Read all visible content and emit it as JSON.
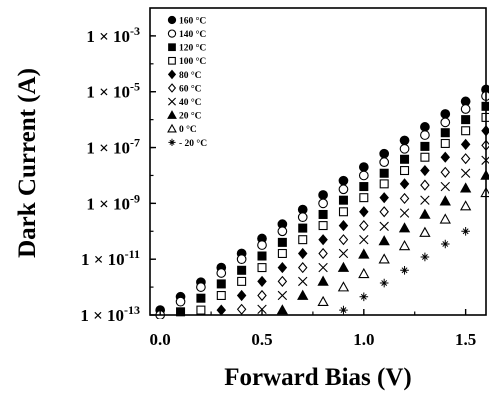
{
  "chart_data": {
    "type": "scatter",
    "xlabel": "Forward Bias (V)",
    "ylabel": "Dark Current (A)",
    "x_scale": "linear",
    "y_scale": "log",
    "xlim": [
      -0.05,
      1.6
    ],
    "ylim": [
      1e-13,
      0.01
    ],
    "x_ticks": [
      0.0,
      0.5,
      1.0,
      1.5
    ],
    "x_tick_labels": [
      "0.0",
      "0.5",
      "1.0",
      "1.5"
    ],
    "y_ticks": [
      1e-13,
      1e-11,
      1e-09,
      1e-07,
      1e-05,
      0.001
    ],
    "y_tick_labels": [
      {
        "base": "1 × 10",
        "exp": "-13"
      },
      {
        "base": "1 × 10",
        "exp": "-11"
      },
      {
        "base": "1 × 10",
        "exp": "-9"
      },
      {
        "base": "1 × 10",
        "exp": "-7"
      },
      {
        "base": "1 × 10",
        "exp": "-5"
      },
      {
        "base": "1 × 10",
        "exp": "-3"
      }
    ],
    "grid": false,
    "legend_position": "top-left",
    "series": [
      {
        "name": "160 °C",
        "marker": "filled-circle",
        "x": [
          0.0,
          0.1,
          0.2,
          0.3,
          0.4,
          0.5,
          0.6,
          0.7,
          0.8,
          0.9,
          1.0,
          1.1,
          1.2,
          1.3,
          1.4,
          1.5,
          1.6
        ],
        "y": [
          1.5e-13,
          4.5e-13,
          1.5e-12,
          5e-12,
          1.6e-11,
          5.5e-11,
          1.8e-10,
          6e-10,
          2e-09,
          6.5e-09,
          2e-08,
          6e-08,
          1.8e-07,
          5.5e-07,
          1.6e-06,
          4.5e-06,
          1.2e-05
        ]
      },
      {
        "name": "140 °C",
        "marker": "open-circle",
        "x": [
          0.0,
          0.1,
          0.2,
          0.3,
          0.4,
          0.5,
          0.6,
          0.7,
          0.8,
          0.9,
          1.0,
          1.1,
          1.2,
          1.3,
          1.4,
          1.5,
          1.6
        ],
        "y": [
          1e-13,
          3e-13,
          1e-12,
          3.2e-12,
          1e-11,
          3.2e-11,
          1e-10,
          3.2e-10,
          1e-09,
          3.2e-09,
          1e-08,
          3e-08,
          9e-08,
          2.8e-07,
          8e-07,
          2.4e-06,
          7e-06
        ]
      },
      {
        "name": "120 °C",
        "marker": "filled-square",
        "x": [
          0.1,
          0.2,
          0.3,
          0.4,
          0.5,
          0.6,
          0.7,
          0.8,
          0.9,
          1.0,
          1.1,
          1.2,
          1.3,
          1.4,
          1.5,
          1.6
        ],
        "y": [
          1.3e-13,
          4e-13,
          1.3e-12,
          4e-12,
          1.3e-11,
          4e-11,
          1.3e-10,
          4e-10,
          1.3e-09,
          4e-09,
          1.2e-08,
          3.8e-08,
          1.1e-07,
          3.4e-07,
          1e-06,
          3e-06
        ]
      },
      {
        "name": "100 °C",
        "marker": "open-square",
        "x": [
          0.2,
          0.3,
          0.4,
          0.5,
          0.6,
          0.7,
          0.8,
          0.9,
          1.0,
          1.1,
          1.2,
          1.3,
          1.4,
          1.5,
          1.6
        ],
        "y": [
          1.5e-13,
          5e-13,
          1.6e-12,
          5e-12,
          1.6e-11,
          5e-11,
          1.6e-10,
          5e-10,
          1.6e-09,
          5e-09,
          1.5e-08,
          4.5e-08,
          1.4e-07,
          4e-07,
          1.2e-06
        ]
      },
      {
        "name": "80 °C",
        "marker": "filled-diamond",
        "x": [
          0.3,
          0.4,
          0.5,
          0.6,
          0.7,
          0.8,
          0.9,
          1.0,
          1.1,
          1.2,
          1.3,
          1.4,
          1.5,
          1.6
        ],
        "y": [
          1.5e-13,
          5e-13,
          1.6e-12,
          5e-12,
          1.6e-11,
          5e-11,
          1.6e-10,
          5e-10,
          1.6e-09,
          5e-09,
          1.5e-08,
          4.5e-08,
          1.3e-07,
          4e-07
        ]
      },
      {
        "name": "60 °C",
        "marker": "open-diamond",
        "x": [
          0.4,
          0.5,
          0.6,
          0.7,
          0.8,
          0.9,
          1.0,
          1.1,
          1.2,
          1.3,
          1.4,
          1.5,
          1.6
        ],
        "y": [
          1.6e-13,
          5e-13,
          1.6e-12,
          5e-12,
          1.6e-11,
          5e-11,
          1.6e-10,
          5e-10,
          1.5e-09,
          4.5e-09,
          1.3e-08,
          4e-08,
          1.2e-07
        ]
      },
      {
        "name": "40 °C",
        "marker": "cross",
        "x": [
          0.5,
          0.6,
          0.7,
          0.8,
          0.9,
          1.0,
          1.1,
          1.2,
          1.3,
          1.4,
          1.5,
          1.6
        ],
        "y": [
          1.6e-13,
          5e-13,
          1.6e-12,
          5e-12,
          1.6e-11,
          5e-11,
          1.5e-10,
          4.5e-10,
          1.3e-09,
          4e-09,
          1.2e-08,
          3.5e-08
        ]
      },
      {
        "name": "20 °C",
        "marker": "filled-triangle",
        "x": [
          0.6,
          0.7,
          0.8,
          0.9,
          1.0,
          1.1,
          1.2,
          1.3,
          1.4,
          1.5,
          1.6
        ],
        "y": [
          1.5e-13,
          5e-13,
          1.6e-12,
          5e-12,
          1.5e-11,
          4.5e-11,
          1.3e-10,
          4e-10,
          1.2e-09,
          3.5e-09,
          1e-08
        ]
      },
      {
        "name": "0 °C",
        "marker": "open-triangle",
        "x": [
          0.8,
          0.9,
          1.0,
          1.1,
          1.2,
          1.3,
          1.4,
          1.5,
          1.6
        ],
        "y": [
          3e-13,
          1e-12,
          3e-12,
          1e-11,
          3e-11,
          9e-11,
          2.7e-10,
          8e-10,
          2.4e-09
        ]
      },
      {
        "name": "- 20 °C",
        "marker": "asterisk",
        "x": [
          0.9,
          1.0,
          1.1,
          1.2,
          1.3,
          1.4,
          1.5
        ],
        "y": [
          1.5e-13,
          4.5e-13,
          1.4e-12,
          4e-12,
          1.2e-11,
          3.5e-11,
          1e-10
        ]
      }
    ]
  }
}
